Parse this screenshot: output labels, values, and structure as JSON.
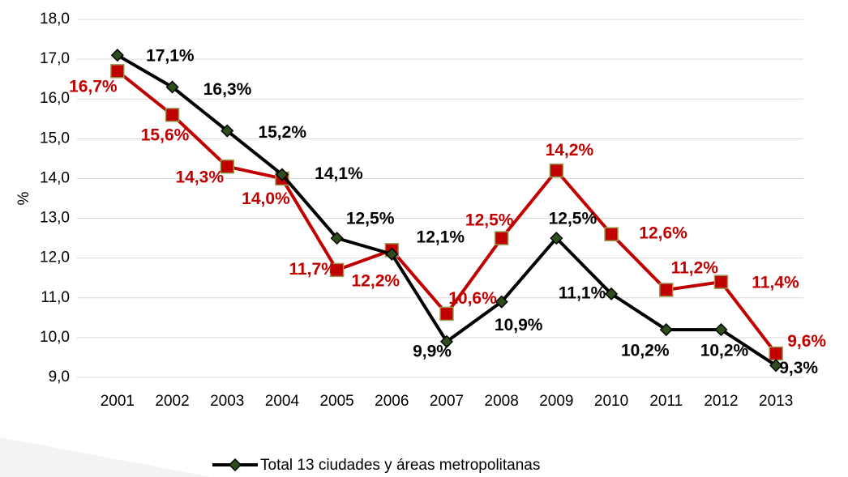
{
  "chart_data": {
    "type": "line",
    "ylabel": "%",
    "categories": [
      "2001",
      "2002",
      "2003",
      "2004",
      "2005",
      "2006",
      "2007",
      "2008",
      "2009",
      "2010",
      "2011",
      "2012",
      "2013"
    ],
    "series": [
      {
        "name": "Total 13 ciudades y áreas metropolitanas",
        "color": "#000000",
        "marker_color": "#2e4d1c",
        "values": [
          17.1,
          16.3,
          15.2,
          14.1,
          12.5,
          12.1,
          9.9,
          10.9,
          12.5,
          11.1,
          10.2,
          10.2,
          9.3
        ],
        "value_labels": [
          "17,1%",
          "16,3%",
          "15,2%",
          "14,1%",
          "12,5%",
          "12,1%",
          "9,9%",
          "10,9%",
          "12,5%",
          "11,1%",
          "10,2%",
          "10,2%",
          "9,3%"
        ]
      },
      {
        "color": "#c00000",
        "marker_color": "#c00000",
        "values": [
          16.7,
          15.6,
          14.3,
          14.0,
          11.7,
          12.2,
          10.6,
          12.5,
          14.2,
          12.6,
          11.2,
          11.4,
          9.6
        ],
        "value_labels": [
          "16,7%",
          "15,6%",
          "14,3%",
          "14,0%",
          "11,7%",
          "12,2%",
          "10,6%",
          "12,5%",
          "14,2%",
          "12,6%",
          "11,2%",
          "11,4%",
          "9,6%"
        ]
      }
    ],
    "ylim": [
      9,
      18
    ],
    "yticks": [
      {
        "value": 9,
        "label": "9,0"
      },
      {
        "value": 10,
        "label": "10,0"
      },
      {
        "value": 11,
        "label": "11,0"
      },
      {
        "value": 12,
        "label": "12,0"
      },
      {
        "value": 13,
        "label": "13,0"
      },
      {
        "value": 14,
        "label": "14,0"
      },
      {
        "value": 15,
        "label": "15,0"
      },
      {
        "value": 16,
        "label": "16,0"
      },
      {
        "value": 17,
        "label": "17,0"
      },
      {
        "value": 18,
        "label": "18,0"
      }
    ],
    "grid": true,
    "legend": "bottom"
  }
}
